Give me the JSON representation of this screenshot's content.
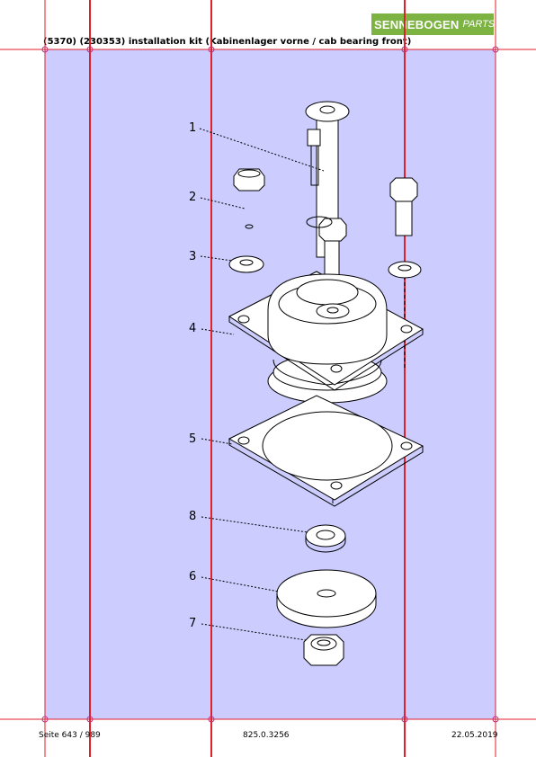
{
  "logo": {
    "brand": "SENNEBOGEN",
    "sub": "PARTS"
  },
  "title": "(5370) (230353) installation kit (Kabinenlager vorne / cab bearing front)",
  "callouts": [
    "1",
    "2",
    "3",
    "4",
    "5",
    "8",
    "6",
    "7"
  ],
  "footer": {
    "page": "Seite 643 / 989",
    "code": "825.0.3256",
    "date": "22.05.2019"
  },
  "colors": {
    "panel": "#ccccff",
    "grid": "#e0202a",
    "logo": "#7cb342"
  }
}
